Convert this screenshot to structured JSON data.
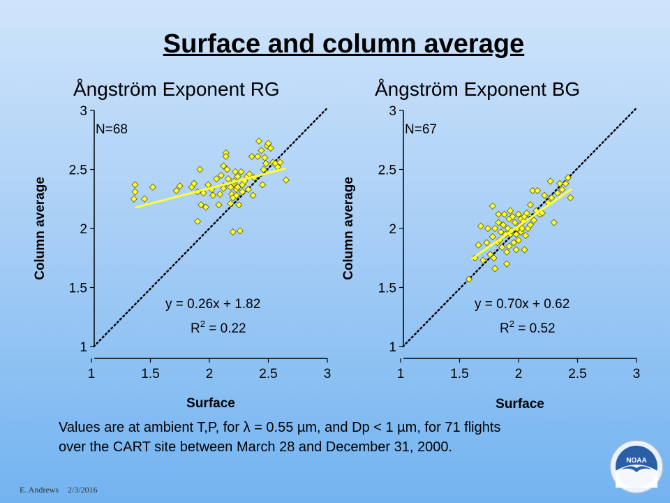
{
  "slide": {
    "title": "Surface and column average",
    "caption_line1": "Values are at ambient T,P, for λ = 0.55 µm, and Dp < 1 µm, for 71 flights",
    "caption_line2": "over the CART site between March 28 and December 31, 2000.",
    "footer_author": "E. Andrews",
    "footer_date": "2/3/2016",
    "logo_text": "NOAA"
  },
  "colors": {
    "marker_fill": "#ffff33",
    "marker_stroke": "#5a5a00",
    "fit_line": "#ffff33",
    "one_to_one_line": "#000000"
  },
  "chart_data": [
    {
      "type": "scatter",
      "title": "Ångström Exponent RG",
      "xlabel": "Surface",
      "ylabel": "Column average",
      "xlim": [
        1,
        3
      ],
      "ylim": [
        1,
        3
      ],
      "xticks": [
        "1",
        "1.5",
        "2",
        "2.5",
        "3"
      ],
      "yticks": [
        "1",
        "1.5",
        "2",
        "2.5",
        "3"
      ],
      "n_label": "N=68",
      "equation": "y = 0.26x + 1.82",
      "r2_prefix": "R",
      "r2_sup": "2",
      "r2_value": " = 0.22",
      "fit": {
        "slope": 0.26,
        "intercept": 1.82,
        "x_range": [
          1.37,
          2.65
        ]
      },
      "one_to_one": {
        "style": "dotted"
      },
      "grid": false,
      "points": [
        [
          1.37,
          2.37
        ],
        [
          1.37,
          2.31
        ],
        [
          1.36,
          2.25
        ],
        [
          1.45,
          2.25
        ],
        [
          1.52,
          2.35
        ],
        [
          1.72,
          2.32
        ],
        [
          1.75,
          2.36
        ],
        [
          1.85,
          2.35
        ],
        [
          1.87,
          2.38
        ],
        [
          1.9,
          2.31
        ],
        [
          1.92,
          2.5
        ],
        [
          1.93,
          2.2
        ],
        [
          1.9,
          2.06
        ],
        [
          1.97,
          2.18
        ],
        [
          1.95,
          2.3
        ],
        [
          1.99,
          2.37
        ],
        [
          2.02,
          2.33
        ],
        [
          2.03,
          2.28
        ],
        [
          2.06,
          2.42
        ],
        [
          2.09,
          2.29
        ],
        [
          2.08,
          2.2
        ],
        [
          2.1,
          2.45
        ],
        [
          2.12,
          2.53
        ],
        [
          2.12,
          2.36
        ],
        [
          2.12,
          2.34
        ],
        [
          2.14,
          2.64
        ],
        [
          2.14,
          2.61
        ],
        [
          2.15,
          2.5
        ],
        [
          2.16,
          2.42
        ],
        [
          2.18,
          2.35
        ],
        [
          2.18,
          2.21
        ],
        [
          2.19,
          2.29
        ],
        [
          2.2,
          2.26
        ],
        [
          2.21,
          2.38
        ],
        [
          2.21,
          2.4
        ],
        [
          2.22,
          2.48
        ],
        [
          2.23,
          2.33
        ],
        [
          2.23,
          2.28
        ],
        [
          2.24,
          2.44
        ],
        [
          2.24,
          2.35
        ],
        [
          2.25,
          2.2
        ],
        [
          2.26,
          1.98
        ],
        [
          2.27,
          2.48
        ],
        [
          2.28,
          2.37
        ],
        [
          2.28,
          2.31
        ],
        [
          2.2,
          1.97
        ],
        [
          2.3,
          2.4
        ],
        [
          2.32,
          2.44
        ],
        [
          2.33,
          2.33
        ],
        [
          2.34,
          2.46
        ],
        [
          2.36,
          2.61
        ],
        [
          2.37,
          2.28
        ],
        [
          2.38,
          2.43
        ],
        [
          2.41,
          2.61
        ],
        [
          2.42,
          2.74
        ],
        [
          2.44,
          2.66
        ],
        [
          2.45,
          2.37
        ],
        [
          2.46,
          2.5
        ],
        [
          2.47,
          2.6
        ],
        [
          2.48,
          2.55
        ],
        [
          2.49,
          2.7
        ],
        [
          2.5,
          2.72
        ],
        [
          2.52,
          2.68
        ],
        [
          2.54,
          2.56
        ],
        [
          2.56,
          2.55
        ],
        [
          2.58,
          2.52
        ],
        [
          2.6,
          2.56
        ],
        [
          2.65,
          2.41
        ]
      ]
    },
    {
      "type": "scatter",
      "title": "Ångström Exponent BG",
      "xlabel": "Surface",
      "ylabel": "Column average",
      "xlim": [
        1,
        3
      ],
      "ylim": [
        1,
        3
      ],
      "xticks": [
        "1",
        "1.5",
        "2",
        "2.5",
        "3"
      ],
      "yticks": [
        "1",
        "1.5",
        "2",
        "2.5",
        "3"
      ],
      "n_label": "N=67",
      "equation": "y = 0.70x + 0.62",
      "r2_prefix": "R",
      "r2_sup": "2",
      "r2_value": " = 0.52",
      "fit": {
        "slope": 0.7,
        "intercept": 0.62,
        "x_range": [
          1.6,
          2.45
        ]
      },
      "one_to_one": {
        "style": "dotted"
      },
      "grid": false,
      "points": [
        [
          1.58,
          1.57
        ],
        [
          1.63,
          1.75
        ],
        [
          1.66,
          1.86
        ],
        [
          1.7,
          1.73
        ],
        [
          1.68,
          2.02
        ],
        [
          1.73,
          1.88
        ],
        [
          1.74,
          2.0
        ],
        [
          1.76,
          1.78
        ],
        [
          1.78,
          1.93
        ],
        [
          1.78,
          2.19
        ],
        [
          1.79,
          1.75
        ],
        [
          1.8,
          1.66
        ],
        [
          1.8,
          2.0
        ],
        [
          1.82,
          1.88
        ],
        [
          1.83,
          2.12
        ],
        [
          1.83,
          2.05
        ],
        [
          1.84,
          1.9
        ],
        [
          1.85,
          1.97
        ],
        [
          1.86,
          1.84
        ],
        [
          1.87,
          2.03
        ],
        [
          1.88,
          2.12
        ],
        [
          1.89,
          1.95
        ],
        [
          1.9,
          1.8
        ],
        [
          1.9,
          1.7
        ],
        [
          1.91,
          2.0
        ],
        [
          1.92,
          2.08
        ],
        [
          1.92,
          1.85
        ],
        [
          1.93,
          2.15
        ],
        [
          1.93,
          1.95
        ],
        [
          1.94,
          1.98
        ],
        [
          1.95,
          2.1
        ],
        [
          1.96,
          1.88
        ],
        [
          1.97,
          2.05
        ],
        [
          1.98,
          1.95
        ],
        [
          1.98,
          1.82
        ],
        [
          1.99,
          2.0
        ],
        [
          2.0,
          2.12
        ],
        [
          2.0,
          1.9
        ],
        [
          2.01,
          2.02
        ],
        [
          2.02,
          1.97
        ],
        [
          2.02,
          2.08
        ],
        [
          2.03,
          2.0
        ],
        [
          2.04,
          2.06
        ],
        [
          2.05,
          2.1
        ],
        [
          2.05,
          1.82
        ],
        [
          2.06,
          1.94
        ],
        [
          2.07,
          2.13
        ],
        [
          2.08,
          2.0
        ],
        [
          2.1,
          2.03
        ],
        [
          2.1,
          2.2
        ],
        [
          2.12,
          2.32
        ],
        [
          2.13,
          2.07
        ],
        [
          2.15,
          2.15
        ],
        [
          2.16,
          2.32
        ],
        [
          2.18,
          2.12
        ],
        [
          2.2,
          2.13
        ],
        [
          2.22,
          2.28
        ],
        [
          2.25,
          2.22
        ],
        [
          2.27,
          2.4
        ],
        [
          2.28,
          2.26
        ],
        [
          2.3,
          2.05
        ],
        [
          2.33,
          2.3
        ],
        [
          2.35,
          2.38
        ],
        [
          2.37,
          2.33
        ],
        [
          2.4,
          2.38
        ],
        [
          2.42,
          2.43
        ],
        [
          2.44,
          2.26
        ]
      ]
    }
  ]
}
